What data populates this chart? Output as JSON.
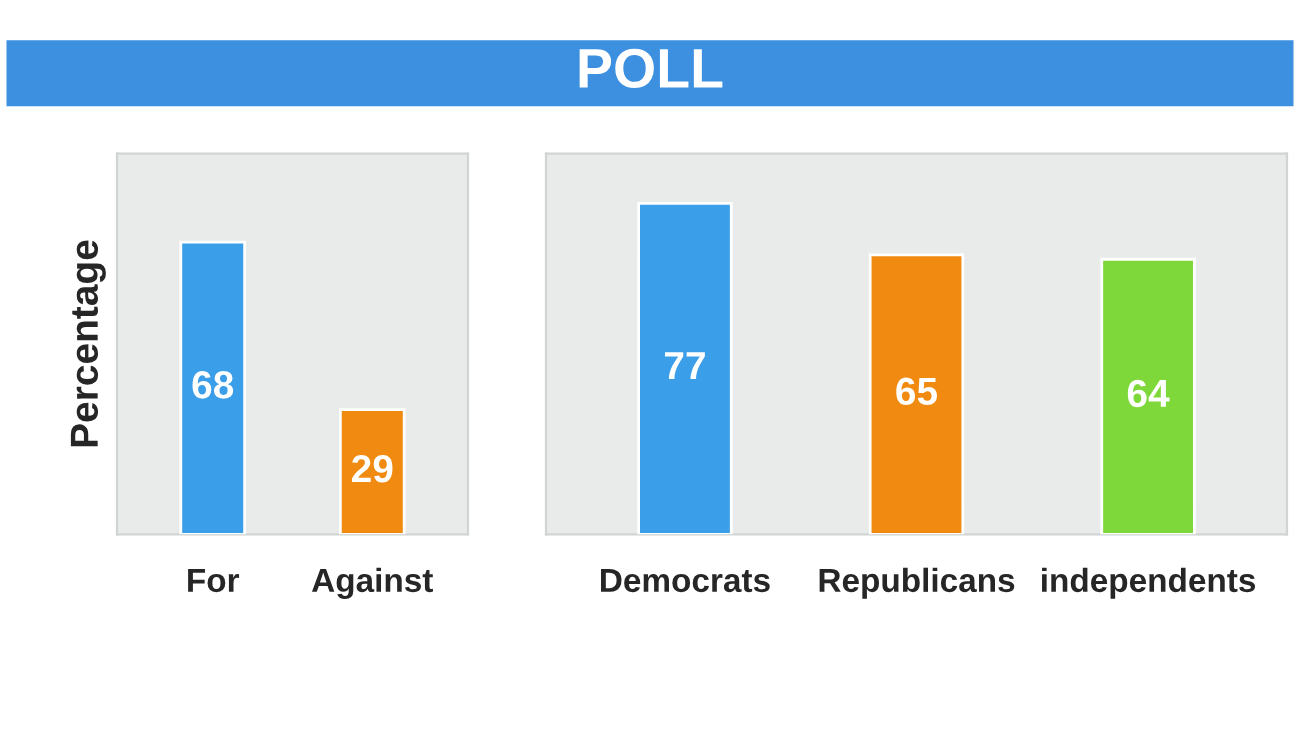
{
  "chart_data": [
    {
      "type": "bar",
      "ylabel": "Percentage",
      "categories": [
        "For",
        "Against"
      ],
      "values": [
        68,
        29
      ],
      "colors": [
        "#3a9ee8",
        "#f08a10"
      ],
      "data_labels": true,
      "tick_labels": "x"
    },
    {
      "type": "bar",
      "title": "POLL",
      "categories": [
        "Democrats",
        "Republicans",
        "independents"
      ],
      "values": [
        77,
        65,
        64
      ],
      "colors": [
        "#3a9ee8",
        "#f08a10",
        "#7fd83a"
      ],
      "data_labels": true,
      "tick_labels": "x"
    }
  ]
}
